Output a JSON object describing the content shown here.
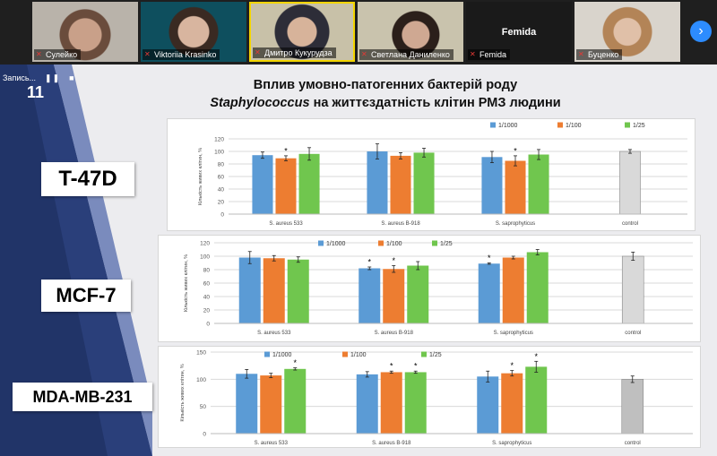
{
  "meeting": {
    "participants": [
      {
        "name": "Сулейко",
        "muted": true
      },
      {
        "name": "Viktoriia Krasinko",
        "muted": true
      },
      {
        "name": "Дмитро Кукурудза",
        "muted": true
      },
      {
        "name": "Светлана Даниленко",
        "muted": true
      },
      {
        "name": "Femida",
        "muted": true,
        "label": "Femida"
      },
      {
        "name": "Буценко",
        "muted": true
      }
    ],
    "next_icon": "chevron-right-icon"
  },
  "recording": {
    "label": "Запись...",
    "pause_icon": "pause-icon"
  },
  "slide": {
    "number": "11",
    "title_line1": "Вплив умовно-патогенних бактерій роду",
    "title_italic": "Staphylococcus",
    "title_rest": " на життєздатність клітин РМЗ людини"
  },
  "cell_lines": [
    "T-47D",
    "MCF-7",
    "MDA-MB-231"
  ],
  "colors": {
    "s1000": "#5b9bd5",
    "s100": "#ed7d31",
    "s25": "#70c64e",
    "control": "#d9d9d9",
    "control_dark": "#bfbfbf",
    "sidebar": "#2a3f7a"
  },
  "chart_data": [
    {
      "type": "bar",
      "cell_line": "T-47D",
      "ylabel": "Кількість живих клітин, %",
      "ylim": [
        0,
        120
      ],
      "yticks": [
        0,
        20,
        40,
        60,
        80,
        100,
        120
      ],
      "categories": [
        "S. aureus 533",
        "S. aureus B-918",
        "S. saprophyticus",
        "control"
      ],
      "series": [
        {
          "name": "1/1000",
          "color": "#5b9bd5",
          "values": [
            94,
            100,
            91,
            null
          ],
          "errors": [
            5,
            12,
            9,
            null
          ],
          "stars": [
            false,
            false,
            false,
            false
          ]
        },
        {
          "name": "1/100",
          "color": "#ed7d31",
          "values": [
            89,
            93,
            85,
            null
          ],
          "errors": [
            4,
            5,
            8,
            null
          ],
          "stars": [
            true,
            false,
            true,
            false
          ]
        },
        {
          "name": "1/25",
          "color": "#70c64e",
          "values": [
            96,
            98,
            95,
            null
          ],
          "errors": [
            10,
            7,
            8,
            null
          ],
          "stars": [
            false,
            false,
            false,
            false
          ]
        }
      ],
      "control": {
        "value": 100,
        "error": 3,
        "color": "#d9d9d9"
      }
    },
    {
      "type": "bar",
      "cell_line": "MCF-7",
      "ylabel": "Кількість живих клітин, %",
      "ylim": [
        0,
        120
      ],
      "yticks": [
        0,
        20,
        40,
        60,
        80,
        100,
        120
      ],
      "categories": [
        "S. aureus 533",
        "S. aureus B-918",
        "S. saprophyticus",
        "control"
      ],
      "series": [
        {
          "name": "1/1000",
          "color": "#5b9bd5",
          "values": [
            98,
            82,
            89,
            null
          ],
          "errors": [
            9,
            2,
            1,
            null
          ],
          "stars": [
            false,
            true,
            true,
            false
          ]
        },
        {
          "name": "1/100",
          "color": "#ed7d31",
          "values": [
            97,
            81,
            98,
            null
          ],
          "errors": [
            4,
            5,
            2,
            null
          ],
          "stars": [
            false,
            true,
            false,
            false
          ]
        },
        {
          "name": "1/25",
          "color": "#70c64e",
          "values": [
            95,
            86,
            106,
            null
          ],
          "errors": [
            4,
            6,
            4,
            null
          ],
          "stars": [
            false,
            false,
            false,
            false
          ]
        }
      ],
      "control": {
        "value": 100,
        "error": 6,
        "color": "#d9d9d9"
      }
    },
    {
      "type": "bar",
      "cell_line": "MDA-MB-231",
      "ylabel": "Кількість живих клітин, %",
      "ylim": [
        0,
        150
      ],
      "yticks": [
        0,
        50,
        100,
        150
      ],
      "categories": [
        "S. aureus 533",
        "S. aureus B-918",
        "S. saprophyticus",
        "control"
      ],
      "series": [
        {
          "name": "1/1000",
          "color": "#5b9bd5",
          "values": [
            110,
            109,
            105,
            null
          ],
          "errors": [
            8,
            5,
            10,
            null
          ],
          "stars": [
            false,
            false,
            false,
            false
          ]
        },
        {
          "name": "1/100",
          "color": "#ed7d31",
          "values": [
            107,
            113,
            111,
            null
          ],
          "errors": [
            4,
            2,
            5,
            null
          ],
          "stars": [
            false,
            true,
            true,
            false
          ]
        },
        {
          "name": "1/25",
          "color": "#70c64e",
          "values": [
            119,
            113,
            123,
            null
          ],
          "errors": [
            2,
            2,
            10,
            null
          ],
          "stars": [
            true,
            true,
            true,
            false
          ]
        }
      ],
      "control": {
        "value": 100,
        "error": 6,
        "color": "#bfbfbf"
      }
    }
  ]
}
